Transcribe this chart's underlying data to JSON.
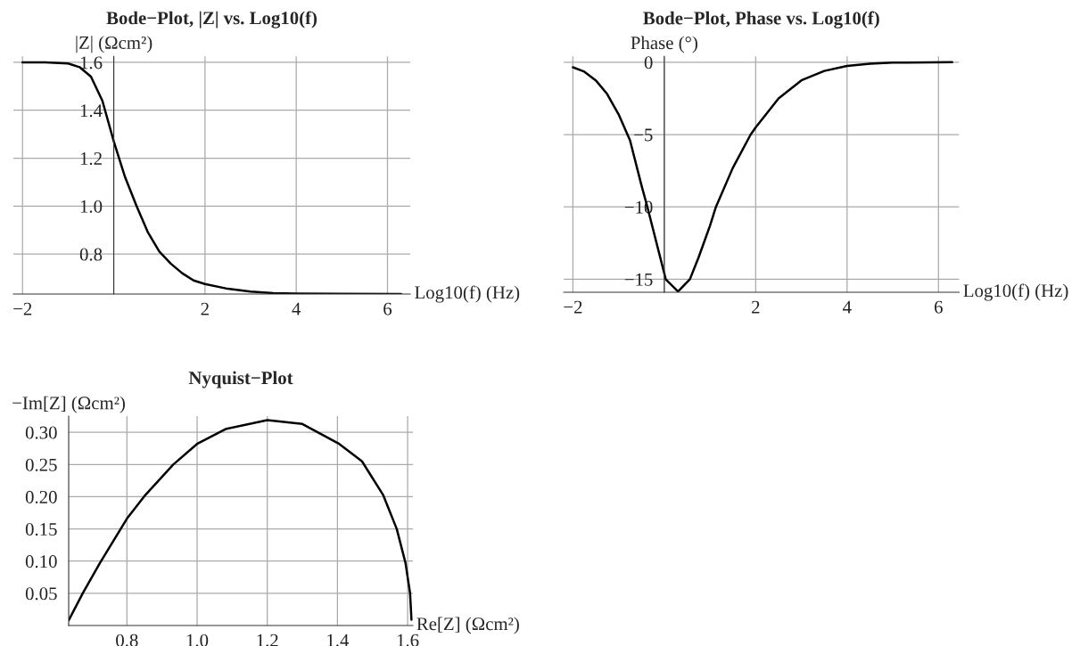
{
  "chart_data": [
    {
      "type": "line",
      "title": "Bode−Plot, |Z| vs. Log10(f)",
      "xlabel": "Log10(f) (Hz)",
      "ylabel": "|Z| (Ωcm²)",
      "x": [
        -2,
        -1.5,
        -1,
        -0.75,
        -0.5,
        -0.25,
        0,
        0.25,
        0.5,
        0.75,
        1.0,
        1.25,
        1.5,
        1.75,
        2.0,
        2.5,
        3.0,
        3.5,
        4.0,
        5.0,
        6.3
      ],
      "series": [
        {
          "color": "#000000",
          "values": [
            1.6,
            1.6,
            1.595,
            1.58,
            1.54,
            1.44,
            1.27,
            1.12,
            1.0,
            0.89,
            0.81,
            0.76,
            0.72,
            0.69,
            0.675,
            0.655,
            0.643,
            0.637,
            0.635,
            0.634,
            0.633
          ]
        }
      ],
      "xlim": [
        -2.2,
        6.5
      ],
      "ylim": [
        0.633,
        1.625
      ],
      "xticks": [
        {
          "value": -2,
          "label": "−2"
        },
        {
          "value": 0,
          "label": null
        },
        2,
        4,
        6
      ],
      "yticks": [
        0.8,
        {
          "value": 1.0,
          "label": "1.0"
        },
        1.2,
        1.4,
        1.6
      ],
      "grid": true,
      "line_style": "solid",
      "marker": "none"
    },
    {
      "type": "line",
      "title": "Bode−Plot, Phase vs. Log10(f)",
      "xlabel": "Log10(f) (Hz)",
      "ylabel": "Phase (°)",
      "x": [
        -2,
        -1.75,
        -1.5,
        -1.25,
        -1,
        -0.75,
        -0.5,
        -0.37,
        -0.25,
        0,
        0.03,
        0.3,
        0.56,
        0.75,
        1.0,
        1.13,
        1.5,
        1.89,
        2.0,
        2.5,
        3.0,
        3.5,
        4.0,
        4.5,
        5.0,
        6.3
      ],
      "series": [
        {
          "color": "#000000",
          "values": [
            -0.35,
            -0.65,
            -1.25,
            -2.2,
            -3.6,
            -5.4,
            -8.5,
            -10,
            -11.5,
            -14.6,
            -15,
            -15.85,
            -15,
            -13.5,
            -11.3,
            -10,
            -7.3,
            -5,
            -4.5,
            -2.5,
            -1.25,
            -0.6,
            -0.25,
            -0.1,
            -0.03,
            0
          ]
        }
      ],
      "xlim": [
        -2.2,
        6.45
      ],
      "ylim": [
        -15.9,
        0.4
      ],
      "xticks": [
        {
          "value": -2,
          "label": "−2"
        },
        {
          "value": 0,
          "label": null
        },
        2,
        4,
        6
      ],
      "yticks": [
        {
          "value": -15,
          "label": "−15"
        },
        {
          "value": -10,
          "label": "−10"
        },
        {
          "value": -5,
          "label": "−5"
        },
        0
      ],
      "grid": true,
      "line_style": "solid",
      "marker": "none"
    },
    {
      "type": "line",
      "title": "Nyquist−Plot",
      "xlabel": "Re[Z] (Ωcm²)",
      "ylabel": "−Im[Z] (Ωcm²)",
      "x": [
        0.634,
        0.674,
        0.723,
        0.8,
        0.853,
        0.932,
        1.0,
        1.081,
        1.2,
        1.3,
        1.405,
        1.47,
        1.53,
        1.569,
        1.594,
        1.607,
        1.611
      ],
      "series": [
        {
          "color": "#000000",
          "values": [
            0.008,
            0.05,
            0.097,
            0.166,
            0.203,
            0.25,
            0.282,
            0.305,
            0.319,
            0.313,
            0.282,
            0.255,
            0.203,
            0.15,
            0.097,
            0.05,
            0.009
          ]
        }
      ],
      "xlim": [
        0.634,
        1.615
      ],
      "ylim": [
        0,
        0.325
      ],
      "xticks": [
        0.8,
        {
          "value": 1.0,
          "label": "1.0"
        },
        1.2,
        1.4,
        1.6
      ],
      "yticks": [
        0.05,
        {
          "value": 0.1,
          "label": "0.10"
        },
        0.15,
        {
          "value": 0.2,
          "label": "0.20"
        },
        0.25,
        {
          "value": 0.3,
          "label": "0.30"
        }
      ],
      "grid": true,
      "line_style": "solid",
      "marker": "none"
    }
  ]
}
